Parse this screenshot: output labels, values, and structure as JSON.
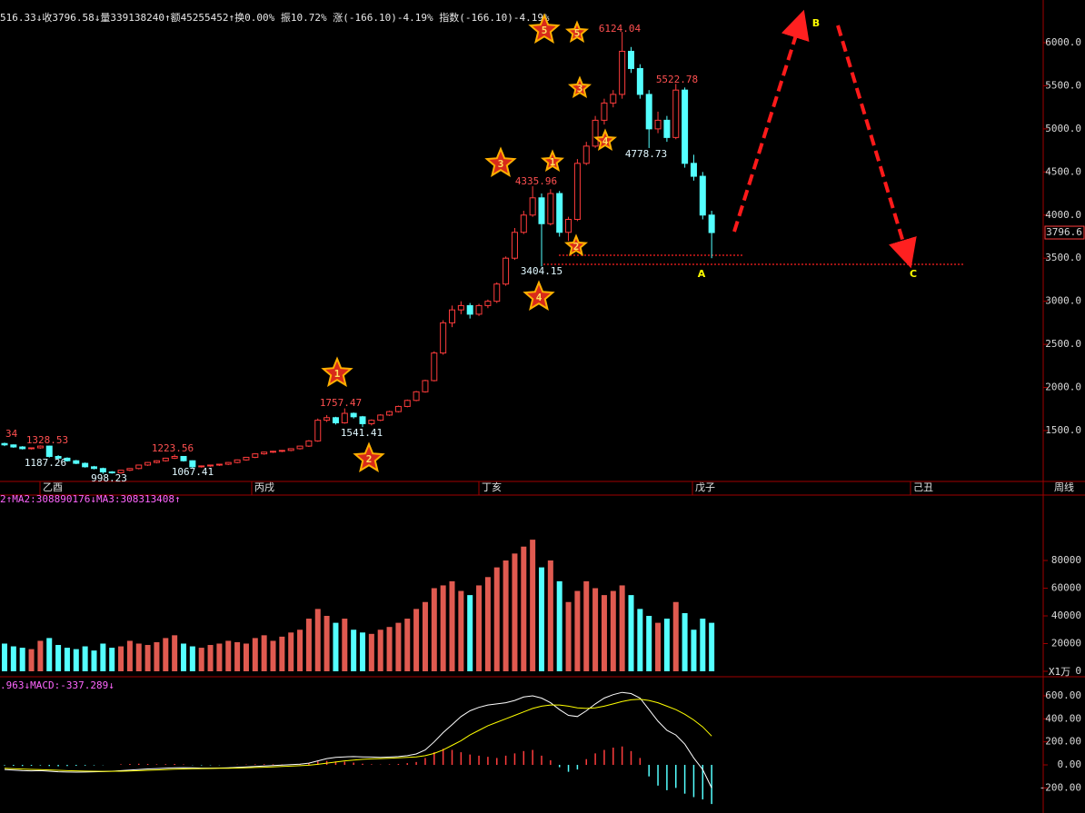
{
  "chart_data": [
    {
      "type": "candlestick",
      "header": "516.33↓收3796.58↓量339138240↑额45255452↑换0.00% 振10.72% 涨(-166.10)-4.19% 指数(-166.10)-4.19%",
      "up_color": "#ff3c3c",
      "down_color": "#54ffff",
      "open": [
        1350,
        1334,
        1310,
        1290,
        1300,
        1320,
        1200,
        1180,
        1150,
        1120,
        1080,
        1060,
        1020,
        1010,
        1040,
        1060,
        1100,
        1130,
        1150,
        1180,
        1200,
        1150,
        1080,
        1090,
        1100,
        1110,
        1130,
        1160,
        1190,
        1230,
        1250,
        1260,
        1270,
        1290,
        1320,
        1380,
        1620,
        1650,
        1590,
        1700,
        1660,
        1580,
        1620,
        1680,
        1720,
        1780,
        1850,
        1950,
        2080,
        2400,
        2750,
        2900,
        2950,
        2850,
        2950,
        3000,
        3200,
        3500,
        3800,
        4000,
        4200,
        3900,
        4250,
        3800,
        3950,
        4600,
        4800,
        5100,
        5300,
        5400,
        5900,
        5700,
        5400,
        5000,
        5100,
        4900,
        5450,
        4600,
        4450,
        4000
      ],
      "high": [
        1360,
        1340,
        1320,
        1305,
        1328,
        1325,
        1215,
        1190,
        1160,
        1130,
        1090,
        1070,
        1030,
        1045,
        1065,
        1105,
        1135,
        1155,
        1185,
        1223,
        1205,
        1155,
        1095,
        1100,
        1112,
        1135,
        1165,
        1195,
        1235,
        1255,
        1265,
        1275,
        1295,
        1325,
        1390,
        1640,
        1680,
        1660,
        1757,
        1710,
        1670,
        1630,
        1690,
        1730,
        1790,
        1860,
        1960,
        2090,
        2420,
        2780,
        2950,
        3000,
        2980,
        2970,
        3020,
        3220,
        3520,
        3850,
        4050,
        4335,
        4250,
        4300,
        4280,
        3980,
        4650,
        4850,
        5150,
        5350,
        5450,
        6124,
        5950,
        5750,
        5450,
        5200,
        5150,
        5522,
        5480,
        4700,
        4500,
        4050
      ],
      "low": [
        1320,
        1300,
        1280,
        1280,
        1290,
        1187,
        1170,
        1140,
        1110,
        1070,
        1050,
        998,
        1000,
        1000,
        1030,
        1050,
        1090,
        1120,
        1140,
        1170,
        1140,
        1067,
        1070,
        1080,
        1090,
        1100,
        1120,
        1150,
        1180,
        1220,
        1240,
        1250,
        1260,
        1280,
        1310,
        1370,
        1600,
        1570,
        1580,
        1640,
        1541,
        1560,
        1610,
        1670,
        1710,
        1770,
        1840,
        1940,
        2070,
        2380,
        2700,
        2850,
        2800,
        2830,
        2920,
        2980,
        3180,
        3480,
        3780,
        3980,
        3404,
        3880,
        3750,
        3700,
        3930,
        4580,
        4780,
        5050,
        5250,
        5350,
        5650,
        5350,
        4778,
        4950,
        4850,
        4880,
        4550,
        4400,
        3950,
        3500
      ],
      "close": [
        1334,
        1310,
        1290,
        1300,
        1320,
        1200,
        1180,
        1150,
        1120,
        1080,
        1060,
        1020,
        1010,
        1040,
        1060,
        1100,
        1130,
        1150,
        1180,
        1200,
        1150,
        1080,
        1090,
        1100,
        1110,
        1130,
        1160,
        1190,
        1230,
        1250,
        1260,
        1270,
        1290,
        1320,
        1380,
        1620,
        1650,
        1590,
        1700,
        1660,
        1580,
        1620,
        1680,
        1720,
        1780,
        1850,
        1950,
        2080,
        2400,
        2750,
        2900,
        2950,
        2850,
        2950,
        3000,
        3200,
        3500,
        3800,
        4000,
        4200,
        3900,
        4250,
        3800,
        3950,
        4600,
        4800,
        5100,
        5300,
        5400,
        5900,
        5700,
        5400,
        5000,
        5100,
        4900,
        5450,
        4600,
        4450,
        4000,
        3797
      ],
      "ylim": [
        910,
        6495
      ],
      "yticks": [
        {
          "value": 1500,
          "label": "1500.0"
        },
        {
          "value": 2000,
          "label": "2000.0"
        },
        {
          "value": 2500,
          "label": "2500.0"
        },
        {
          "value": 3000,
          "label": "3000.0"
        },
        {
          "value": 3500,
          "label": "3500.0"
        },
        {
          "value": 4000,
          "label": "4000.0"
        },
        {
          "value": 4500,
          "label": "4500.0"
        },
        {
          "value": 5000,
          "label": "5000.0"
        },
        {
          "value": 5500,
          "label": "5500.0"
        },
        {
          "value": 6000,
          "label": "6000.0"
        }
      ],
      "last_price_label": "3796.6",
      "price_labels": [
        6124.04,
        5522.78,
        4778.73,
        4335.96,
        3404.15,
        1757.47,
        1541.41,
        1328.53,
        1187.26,
        1223.56,
        998.23,
        1067.41
      ],
      "edge_label": "34",
      "stars": [
        "5",
        "5",
        "3",
        "4",
        "3",
        "1",
        "2",
        "4",
        "1",
        "2"
      ],
      "points": [
        "A",
        "B",
        "C"
      ],
      "periods": [
        "乙酉",
        "丙戌",
        "丁亥",
        "戊子",
        "己丑"
      ],
      "period_unit": "周线"
    },
    {
      "type": "bar",
      "header": "2↑MA2:308890176↓MA3:308313408↑",
      "values": [
        20000,
        18000,
        17000,
        16000,
        22000,
        24000,
        19000,
        17000,
        16000,
        18000,
        15000,
        20000,
        17000,
        18000,
        22000,
        20000,
        19000,
        21000,
        24000,
        26000,
        20000,
        18000,
        17000,
        19000,
        20000,
        22000,
        21000,
        20000,
        24000,
        26000,
        22000,
        25000,
        28000,
        30000,
        38000,
        45000,
        40000,
        35000,
        38000,
        30000,
        28000,
        27000,
        30000,
        32000,
        35000,
        38000,
        45000,
        50000,
        60000,
        62000,
        65000,
        58000,
        55000,
        62000,
        68000,
        75000,
        80000,
        85000,
        90000,
        95000,
        75000,
        80000,
        65000,
        50000,
        58000,
        65000,
        60000,
        55000,
        58000,
        62000,
        55000,
        45000,
        40000,
        35000,
        38000,
        50000,
        42000,
        30000,
        38000,
        35000
      ],
      "ylim": [
        0,
        127200
      ],
      "yticks": [
        0,
        20000,
        40000,
        60000,
        80000
      ],
      "unit_label": "X1万"
    },
    {
      "type": "macd",
      "header": ".963↓MACD:-337.289↓",
      "dif_color": "#ffffff",
      "dea_color": "#ffff00",
      "hist": [
        -5,
        -8,
        -10,
        -8,
        -5,
        -10,
        -12,
        -10,
        -8,
        -6,
        -4,
        -2,
        0,
        5,
        8,
        10,
        8,
        5,
        6,
        8,
        4,
        -2,
        -4,
        -3,
        -2,
        0,
        2,
        3,
        5,
        6,
        5,
        4,
        5,
        8,
        15,
        30,
        35,
        30,
        28,
        20,
        10,
        5,
        3,
        5,
        8,
        15,
        25,
        60,
        110,
        140,
        130,
        110,
        90,
        80,
        70,
        60,
        80,
        100,
        120,
        130,
        80,
        40,
        -20,
        -60,
        -40,
        50,
        100,
        130,
        150,
        160,
        120,
        60,
        -100,
        -180,
        -220,
        -200,
        -250,
        -280,
        -300,
        -340
      ],
      "dif": [
        -40,
        -45,
        -50,
        -52,
        -50,
        -55,
        -60,
        -62,
        -63,
        -62,
        -60,
        -58,
        -55,
        -50,
        -45,
        -40,
        -35,
        -32,
        -28,
        -25,
        -24,
        -26,
        -28,
        -28,
        -27,
        -25,
        -22,
        -18,
        -14,
        -10,
        -6,
        -2,
        2,
        6,
        15,
        35,
        55,
        65,
        70,
        72,
        70,
        68,
        66,
        68,
        72,
        80,
        95,
        130,
        200,
        280,
        350,
        420,
        470,
        500,
        520,
        530,
        540,
        560,
        590,
        600,
        580,
        540,
        480,
        430,
        420,
        470,
        530,
        580,
        610,
        630,
        620,
        580,
        480,
        380,
        300,
        260,
        180,
        60,
        -40,
        -200
      ],
      "dea": [
        -30,
        -33,
        -36,
        -39,
        -41,
        -44,
        -47,
        -50,
        -52,
        -54,
        -55,
        -56,
        -56,
        -55,
        -53,
        -50,
        -47,
        -44,
        -41,
        -38,
        -35,
        -33,
        -32,
        -31,
        -30,
        -29,
        -27,
        -25,
        -23,
        -20,
        -17,
        -14,
        -11,
        -7,
        -3,
        5,
        15,
        25,
        35,
        42,
        48,
        52,
        55,
        58,
        61,
        65,
        70,
        80,
        100,
        130,
        170,
        210,
        260,
        300,
        340,
        370,
        400,
        430,
        460,
        490,
        510,
        520,
        520,
        510,
        495,
        490,
        495,
        510,
        530,
        550,
        565,
        570,
        560,
        540,
        510,
        480,
        440,
        390,
        330,
        250
      ],
      "ylim": [
        -418,
        742
      ],
      "yticks": [
        {
          "value": -200,
          "label": "-200.00"
        },
        {
          "value": 0,
          "label": "0.00"
        },
        {
          "value": 200,
          "label": "200.00"
        },
        {
          "value": 400,
          "label": "400.00"
        },
        {
          "value": 600,
          "label": "600.00"
        }
      ]
    }
  ]
}
